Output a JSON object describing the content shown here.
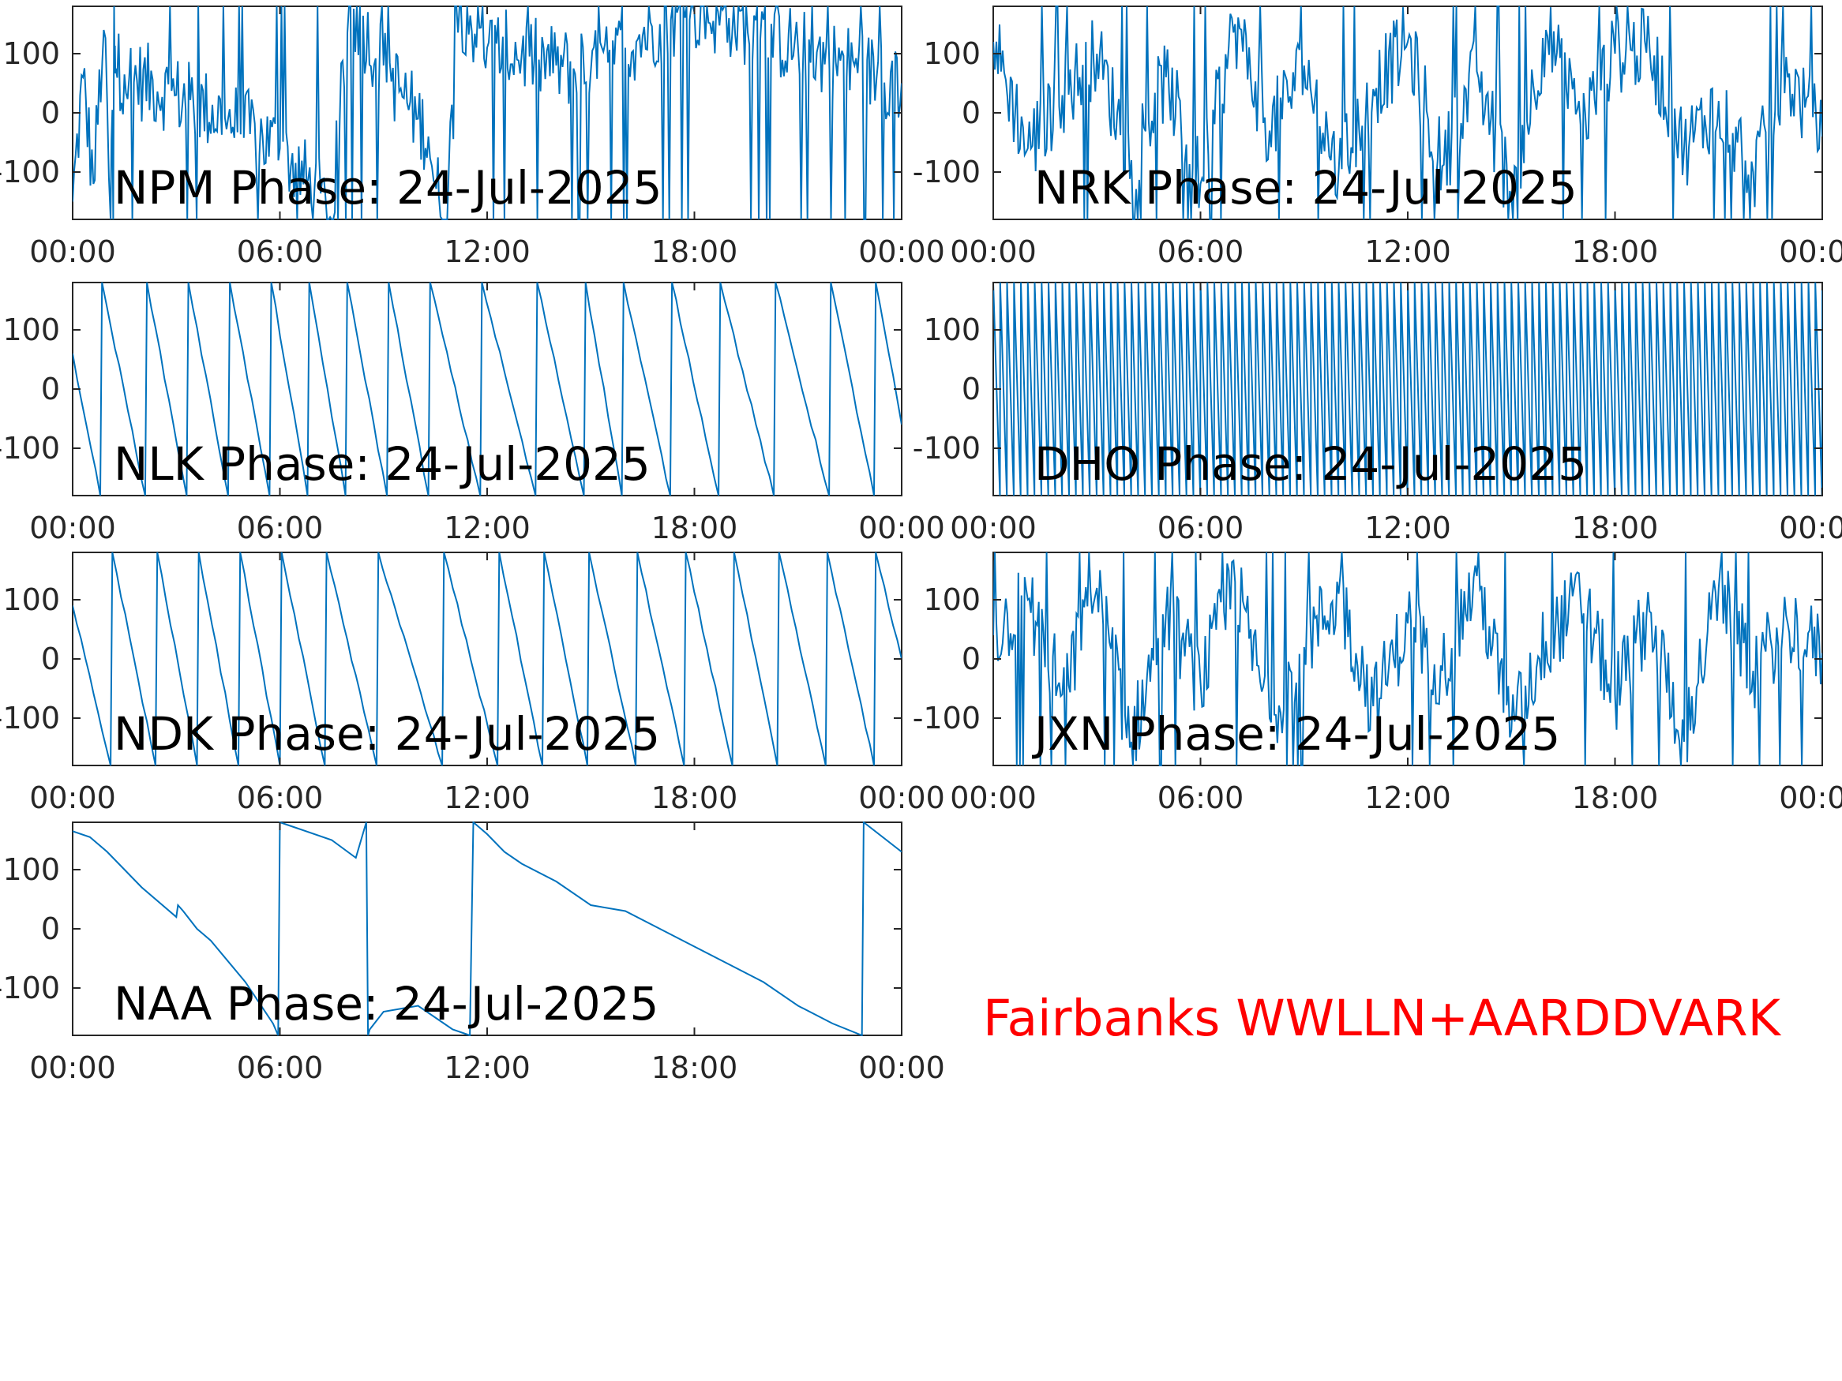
{
  "colors": {
    "line": "#0072BD",
    "axis": "#262626",
    "banner": "#FF0000"
  },
  "banner": "Fairbanks WWLLN+AARDDVARK",
  "chart_data": [
    {
      "type": "line",
      "title": "NPM Phase: 24-Jul-2025",
      "ylim": [
        -180,
        180
      ],
      "yticks": [
        -100,
        0,
        100
      ],
      "ytick_labels": [
        "-100",
        "0",
        "100"
      ],
      "xlim": [
        0,
        24
      ],
      "xtick_labels": [
        "00:00",
        "06:00",
        "12:00",
        "18:00",
        "00:00"
      ],
      "grid": false,
      "series": [
        {
          "style": "noisy",
          "x": [
            0,
            0.3,
            0.6,
            0.9,
            1.1,
            1.2,
            1.25,
            1.5,
            3,
            4.5,
            6,
            7,
            7.5,
            8,
            9,
            10,
            10.3,
            10.5,
            10.6,
            10.8,
            11.2,
            12,
            13,
            13.5,
            14,
            14.5,
            15,
            15.5,
            16,
            16.5,
            17,
            18,
            19,
            21,
            24
          ],
          "y": [
            -150,
            60,
            -120,
            140,
            -180,
            180,
            75,
            65,
            30,
            -10,
            -60,
            -130,
            -180,
            180,
            80,
            -10,
            -40,
            -120,
            -140,
            -180,
            180,
            110,
            100,
            90,
            80,
            75,
            70,
            85,
            110,
            130,
            150,
            170,
            160,
            110,
            50
          ]
        }
      ]
    },
    {
      "type": "line",
      "title": "NRK Phase: 24-Jul-2025",
      "ylim": [
        -180,
        180
      ],
      "yticks": [
        -100,
        0,
        100
      ],
      "ytick_labels": [
        "-100",
        "0",
        "100"
      ],
      "xlim": [
        0,
        24
      ],
      "xtick_labels": [
        "00:00",
        "06:00",
        "12:00",
        "18:00",
        "00:00"
      ],
      "grid": false,
      "series": [
        {
          "style": "noisy",
          "x": [
            0,
            1,
            2,
            3,
            4,
            5,
            6,
            7,
            8,
            9,
            10,
            11,
            12,
            13,
            14,
            15,
            16,
            17,
            18,
            19,
            20,
            21,
            22,
            23,
            24
          ],
          "y": [
            120,
            -60,
            30,
            100,
            -80,
            60,
            -120,
            150,
            -30,
            80,
            -100,
            40,
            120,
            -90,
            70,
            -140,
            140,
            -20,
            100,
            110,
            -60,
            20,
            -100,
            60,
            -40
          ]
        }
      ]
    },
    {
      "type": "line",
      "title": "NLK Phase: 24-Jul-2025",
      "ylim": [
        -180,
        180
      ],
      "yticks": [
        -100,
        0,
        100
      ],
      "ytick_labels": [
        "-100",
        "0",
        "100"
      ],
      "xlim": [
        0,
        24
      ],
      "xtick_labels": [
        "00:00",
        "06:00",
        "12:00",
        "18:00",
        "00:00"
      ],
      "grid": false,
      "series": [
        {
          "style": "sawtooth",
          "x": [
            0,
            0.8,
            0.85,
            2.1,
            2.15,
            3.3,
            3.35,
            4.5,
            4.55,
            5.7,
            5.75,
            6.8,
            6.85,
            7.9,
            7.95,
            9.1,
            9.15,
            10.3,
            10.35,
            11.8,
            11.85,
            13.4,
            13.45,
            14.8,
            14.85,
            15.9,
            15.95,
            17.3,
            17.35,
            18.7,
            18.75,
            20.3,
            20.35,
            21.9,
            21.95,
            23.2,
            23.25,
            24
          ],
          "y": [
            60,
            -180,
            180,
            -180,
            180,
            -180,
            180,
            -180,
            180,
            -180,
            180,
            -180,
            180,
            -180,
            180,
            -180,
            180,
            -180,
            180,
            -180,
            180,
            -180,
            180,
            -180,
            180,
            -180,
            180,
            -180,
            180,
            -180,
            180,
            -180,
            180,
            -180,
            180,
            -180,
            180,
            -60
          ]
        }
      ]
    },
    {
      "type": "line",
      "title": "DHO Phase: 24-Jul-2025",
      "ylim": [
        -180,
        180
      ],
      "yticks": [
        -100,
        0,
        100
      ],
      "ytick_labels": [
        "-100",
        "0",
        "100"
      ],
      "xlim": [
        0,
        24
      ],
      "xtick_labels": [
        "00:00",
        "06:00",
        "12:00",
        "18:00",
        "00:00"
      ],
      "grid": false,
      "series": [
        {
          "style": "sawtooth",
          "period_hours": 0.2,
          "x": [
            0,
            24
          ],
          "y": [
            180,
            -180
          ]
        }
      ]
    },
    {
      "type": "line",
      "title": "NDK Phase: 24-Jul-2025",
      "ylim": [
        -180,
        180
      ],
      "yticks": [
        -100,
        0,
        100
      ],
      "ytick_labels": [
        "-100",
        "0",
        "100"
      ],
      "xlim": [
        0,
        24
      ],
      "xtick_labels": [
        "00:00",
        "06:00",
        "12:00",
        "18:00",
        "00:00"
      ],
      "grid": false,
      "series": [
        {
          "style": "sawtooth",
          "x": [
            0,
            1.1,
            1.15,
            2.4,
            2.45,
            3.6,
            3.65,
            4.8,
            4.85,
            6.0,
            6.05,
            7.3,
            7.35,
            8.8,
            8.85,
            10.7,
            10.75,
            12.3,
            12.35,
            13.6,
            13.65,
            14.9,
            14.95,
            16.3,
            16.35,
            17.7,
            17.75,
            19.1,
            19.15,
            20.4,
            20.45,
            21.8,
            21.85,
            23.2,
            23.25,
            24
          ],
          "y": [
            90,
            -180,
            180,
            -180,
            180,
            -180,
            180,
            -180,
            180,
            -180,
            180,
            -180,
            180,
            -180,
            180,
            -180,
            180,
            -180,
            180,
            -180,
            180,
            -180,
            180,
            -180,
            180,
            -180,
            180,
            -180,
            180,
            -180,
            180,
            -180,
            180,
            -180,
            180,
            0
          ]
        }
      ]
    },
    {
      "type": "line",
      "title": "JXN Phase: 24-Jul-2025",
      "ylim": [
        -180,
        180
      ],
      "yticks": [
        -100,
        0,
        100
      ],
      "ytick_labels": [
        "-100",
        "0",
        "100"
      ],
      "xlim": [
        0,
        24
      ],
      "xtick_labels": [
        "00:00",
        "06:00",
        "12:00",
        "18:00",
        "00:00"
      ],
      "grid": false,
      "series": [
        {
          "style": "noisy",
          "x": [
            0,
            1,
            2,
            3,
            4,
            5,
            6,
            7,
            8,
            9,
            10,
            11,
            12,
            13,
            14,
            15,
            16,
            17,
            18,
            19,
            20,
            21,
            22,
            23,
            24
          ],
          "y": [
            40,
            100,
            -60,
            120,
            -140,
            80,
            -40,
            130,
            -100,
            20,
            110,
            -80,
            60,
            -20,
            140,
            -120,
            30,
            100,
            -60,
            80,
            -140,
            120,
            -20,
            60,
            10
          ]
        }
      ]
    },
    {
      "type": "line",
      "title": "NAA Phase: 24-Jul-2025",
      "ylim": [
        -180,
        180
      ],
      "yticks": [
        -100,
        0,
        100
      ],
      "ytick_labels": [
        "-100",
        "0",
        "100"
      ],
      "xlim": [
        0,
        24
      ],
      "xtick_labels": [
        "00:00",
        "06:00",
        "12:00",
        "18:00",
        "00:00"
      ],
      "grid": false,
      "series": [
        {
          "style": "line",
          "x": [
            0,
            0.5,
            1,
            2,
            3,
            3.05,
            3.2,
            3.6,
            4,
            5,
            5.8,
            5.95,
            6.0,
            6.5,
            7.5,
            8.2,
            8.5,
            8.55,
            8.6,
            9.0,
            10.0,
            10.5,
            11.0,
            11.5,
            11.6,
            11.8,
            12.0,
            12.5,
            13.0,
            14.0,
            15.0,
            16.0,
            17.0,
            18.0,
            19.0,
            20.0,
            21.0,
            22.0,
            22.85,
            22.9,
            24.0
          ],
          "y": [
            165,
            155,
            130,
            70,
            20,
            40,
            30,
            0,
            -20,
            -90,
            -160,
            -180,
            180,
            170,
            150,
            120,
            180,
            -180,
            -170,
            -140,
            -130,
            -150,
            -170,
            -180,
            180,
            170,
            160,
            130,
            110,
            80,
            40,
            30,
            0,
            -30,
            -60,
            -90,
            -130,
            -160,
            -180,
            180,
            130
          ]
        }
      ]
    }
  ]
}
